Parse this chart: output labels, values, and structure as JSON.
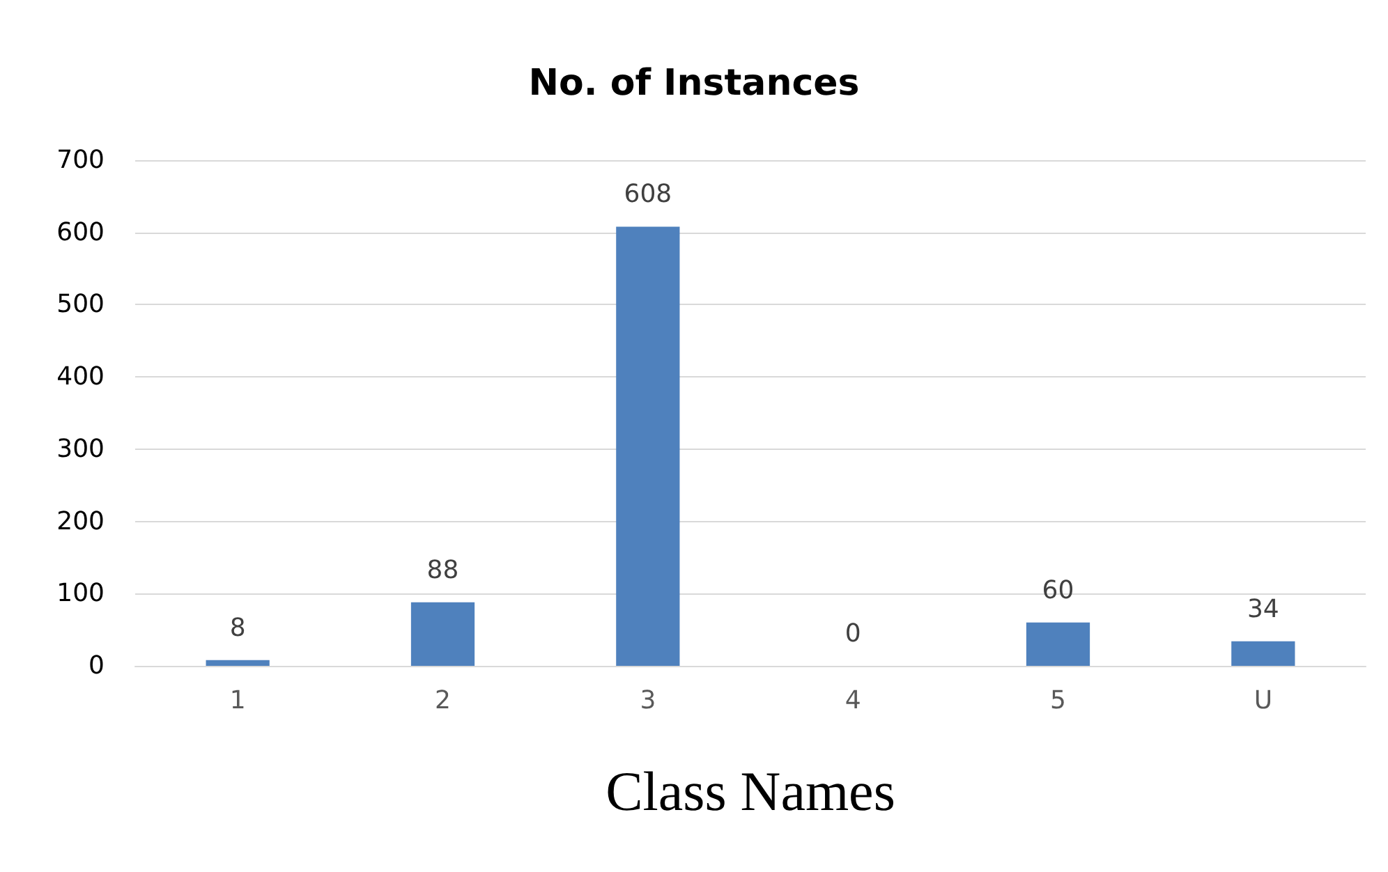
{
  "chart_data": {
    "type": "bar",
    "title": "No. of Instances",
    "xlabel": "Class Names",
    "categories": [
      "1",
      "2",
      "3",
      "4",
      "5",
      "U"
    ],
    "values": [
      8,
      88,
      608,
      0,
      60,
      34
    ],
    "color": "#4f81bd",
    "ylim": [
      0,
      700
    ],
    "yticks": [
      0,
      100,
      200,
      300,
      400,
      500,
      600,
      700
    ],
    "grid": "y",
    "data_labels": true
  }
}
